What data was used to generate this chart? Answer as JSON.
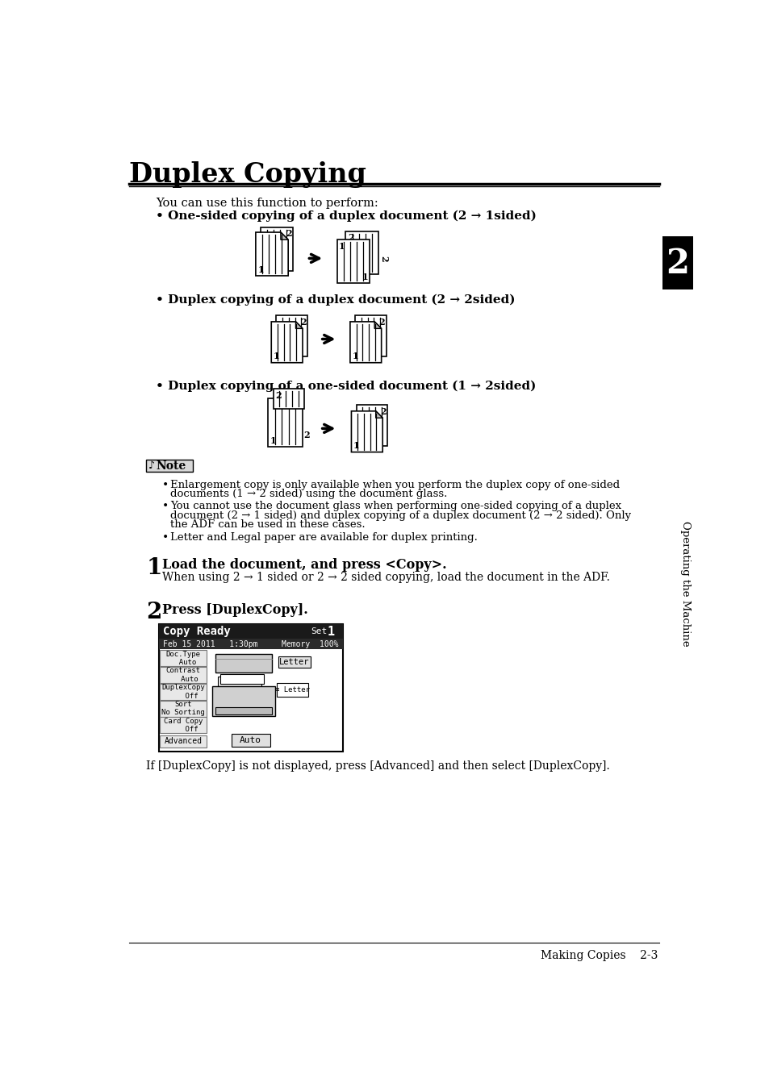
{
  "title": "Duplex Copying",
  "page_bg": "#ffffff",
  "intro_text": "You can use this function to perform:",
  "bullet1": "One-sided copying of a duplex document (2 → 1sided)",
  "bullet2": "Duplex copying of a duplex document (2 → 2sided)",
  "bullet3": "Duplex copying of a one-sided document (1 → 2sided)",
  "note_label": "Note",
  "note1": "Enlargement copy is only available when you perform the duplex copy of one-sided\ndocuments (1 → 2 sided) using the document glass.",
  "note2": "You cannot use the document glass when performing one-sided copying of a duplex\ndocument (2 → 1 sided) and duplex copying of a duplex document (2 → 2 sided). Only\nthe ADF can be used in these cases.",
  "note3": "Letter and Legal paper are available for duplex printing.",
  "step1_num": "1",
  "step1_text": "Load the document, and press <Copy>.",
  "step1_sub": "When using 2 → 1 sided or 2 → 2 sided copying, load the document in the ADF.",
  "step2_num": "2",
  "step2_text": "Press [DuplexCopy].",
  "step2_note": "If [DuplexCopy] is not displayed, press [Advanced] and then select [DuplexCopy].",
  "side_label": "Operating the Machine",
  "side_num": "2",
  "footer_right": "Making Copies    2-3",
  "lcd_title": "Copy Ready",
  "lcd_set": "Set",
  "lcd_num": "1",
  "lcd_date": "Feb 15 2011   1:30pm",
  "lcd_memory": "Memory  100%",
  "lcd_btns": [
    "Doc.Type\n  Auto",
    "Contrast\n   Auto",
    "DuplexCopy\n    Off",
    "Sort\nNo Sorting",
    "Card Copy\n    Off"
  ],
  "lcd_advanced": "Advanced"
}
